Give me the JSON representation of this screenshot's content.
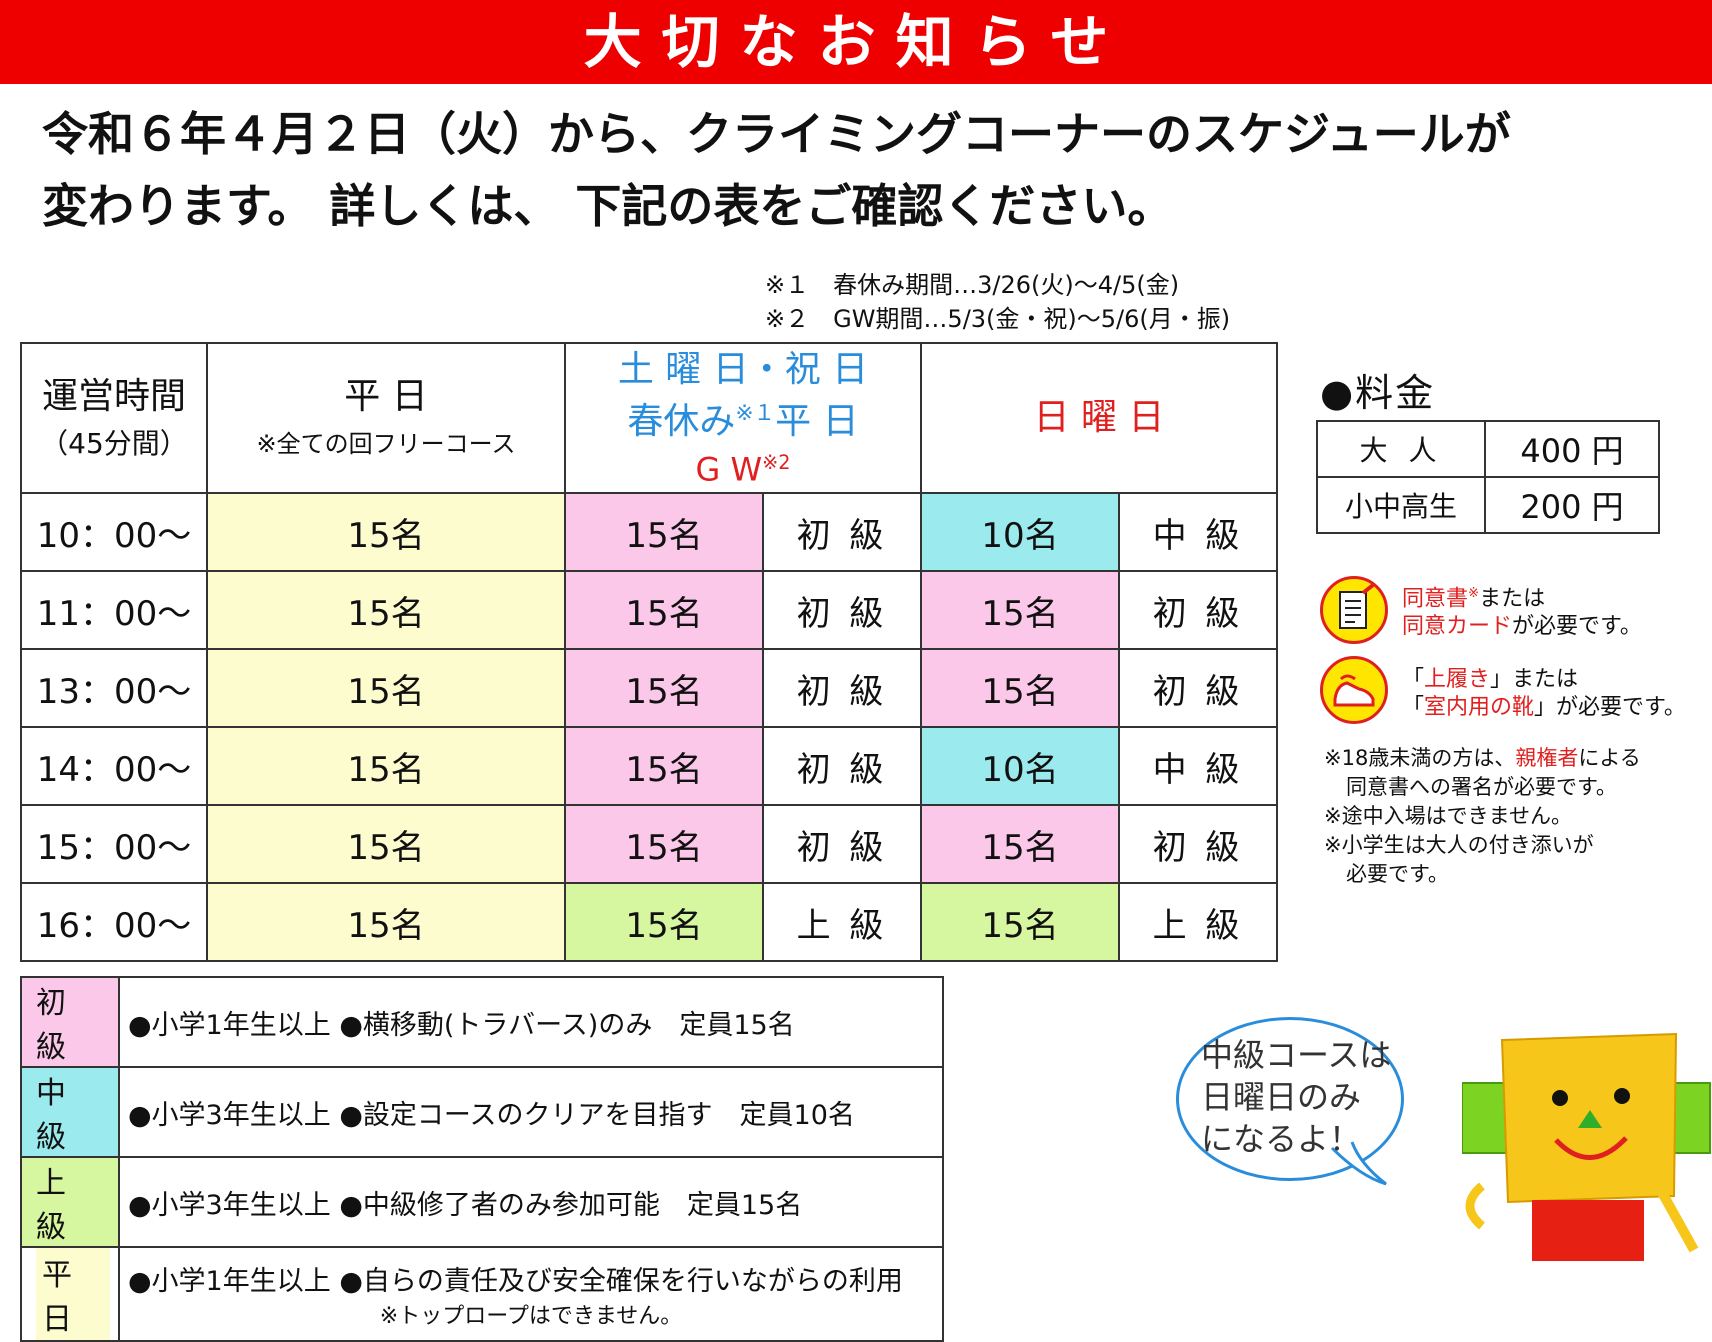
{
  "banner": {
    "title": "大切なお知らせ",
    "color": "#ee0000"
  },
  "intro": {
    "line1": "令和６年４月２日（火）から、クライミングコーナーのスケジュールが",
    "line2": "変わります。 詳しくは、 下記の表をご確認ください。"
  },
  "notes": {
    "note1": "※１　春休み期間…3/26(火)〜4/5(金)",
    "note2": "※２　GW期間…5/3(金・祝)〜5/6(月・振)"
  },
  "schedule": {
    "header": {
      "hours": "運営時間",
      "hours_sub": "（45分間）",
      "weekday": "平 日",
      "weekday_sub": "※全ての回フリーコース",
      "sat_line1": "土 曜 日・祝 日",
      "sat_line2": "春休み",
      "sat_line2_sup": "※１",
      "sat_line2_end": "平 日",
      "sat_line3": "G W",
      "sat_line3_sup": "※2",
      "sunday": "日 曜 日"
    },
    "rows": [
      {
        "time": "10：00〜",
        "weekday": "15名",
        "sat_cap": "15名",
        "sat_level": "初 級",
        "sun_cap": "10名",
        "sun_level": "中 級"
      },
      {
        "time": "11：00〜",
        "weekday": "15名",
        "sat_cap": "15名",
        "sat_level": "初 級",
        "sun_cap": "15名",
        "sun_level": "初 級"
      },
      {
        "time": "13：00〜",
        "weekday": "15名",
        "sat_cap": "15名",
        "sat_level": "初 級",
        "sun_cap": "15名",
        "sun_level": "初 級"
      },
      {
        "time": "14：00〜",
        "weekday": "15名",
        "sat_cap": "15名",
        "sat_level": "初 級",
        "sun_cap": "10名",
        "sun_level": "中 級"
      },
      {
        "time": "15：00〜",
        "weekday": "15名",
        "sat_cap": "15名",
        "sat_level": "初 級",
        "sun_cap": "15名",
        "sun_level": "初 級"
      },
      {
        "time": "16：00〜",
        "weekday": "15名",
        "sat_cap": "15名",
        "sat_level": "上 級",
        "sun_cap": "15名",
        "sun_level": "上 級"
      }
    ],
    "colors": {
      "weekday": "#fdfccf",
      "beginner": "#fbc8e9",
      "intermediate": "#9aeaee",
      "advanced": "#d6f6a0"
    }
  },
  "pricing": {
    "title": "●料金",
    "rows": [
      {
        "label": "大 人",
        "price": "400 円"
      },
      {
        "label": "小中高生",
        "price": "200 円"
      }
    ]
  },
  "requirements": {
    "consent_icon": "clipboard-icon",
    "consent_red1": "同意書",
    "consent_sup": "※",
    "consent_text1": "または",
    "consent_red2": "同意カード",
    "consent_text2": "が必要です。",
    "shoes_icon": "shoe-icon",
    "shoes_open": "「",
    "shoes_red1": "上履き",
    "shoes_text1": "」または",
    "shoes_open2": "「",
    "shoes_red2": "室内用の靴",
    "shoes_text2": "」が必要です。"
  },
  "small_notes": {
    "n1_pre": "※18歳未満の方は、",
    "n1_red": "親権者",
    "n1_post": "による",
    "n1_line2": "同意書への署名が必要です。",
    "n2": "※途中入場はできません。",
    "n3_line1": "※小学生は大人の付き添いが",
    "n3_line2": "必要です。"
  },
  "legend": [
    {
      "label": "初 級",
      "text": "●小学1年生以上 ●横移動(トラバース)のみ　定員15名"
    },
    {
      "label": "中 級",
      "text": "●小学3年生以上 ●設定コースのクリアを目指す　定員10名"
    },
    {
      "label": "上 級",
      "text": "●小学3年生以上 ●中級修了者のみ参加可能　定員15名"
    },
    {
      "label": "平 日",
      "text": "●小学1年生以上 ●自らの責任及び安全確保を行いながらの利用",
      "sub": "※トップロープはできません。"
    }
  ],
  "bubble": {
    "line1": "中級コースは",
    "line2": "日曜日のみ",
    "line3": "になるよ！"
  },
  "mascot": {
    "icon": "box-mascot-icon"
  }
}
